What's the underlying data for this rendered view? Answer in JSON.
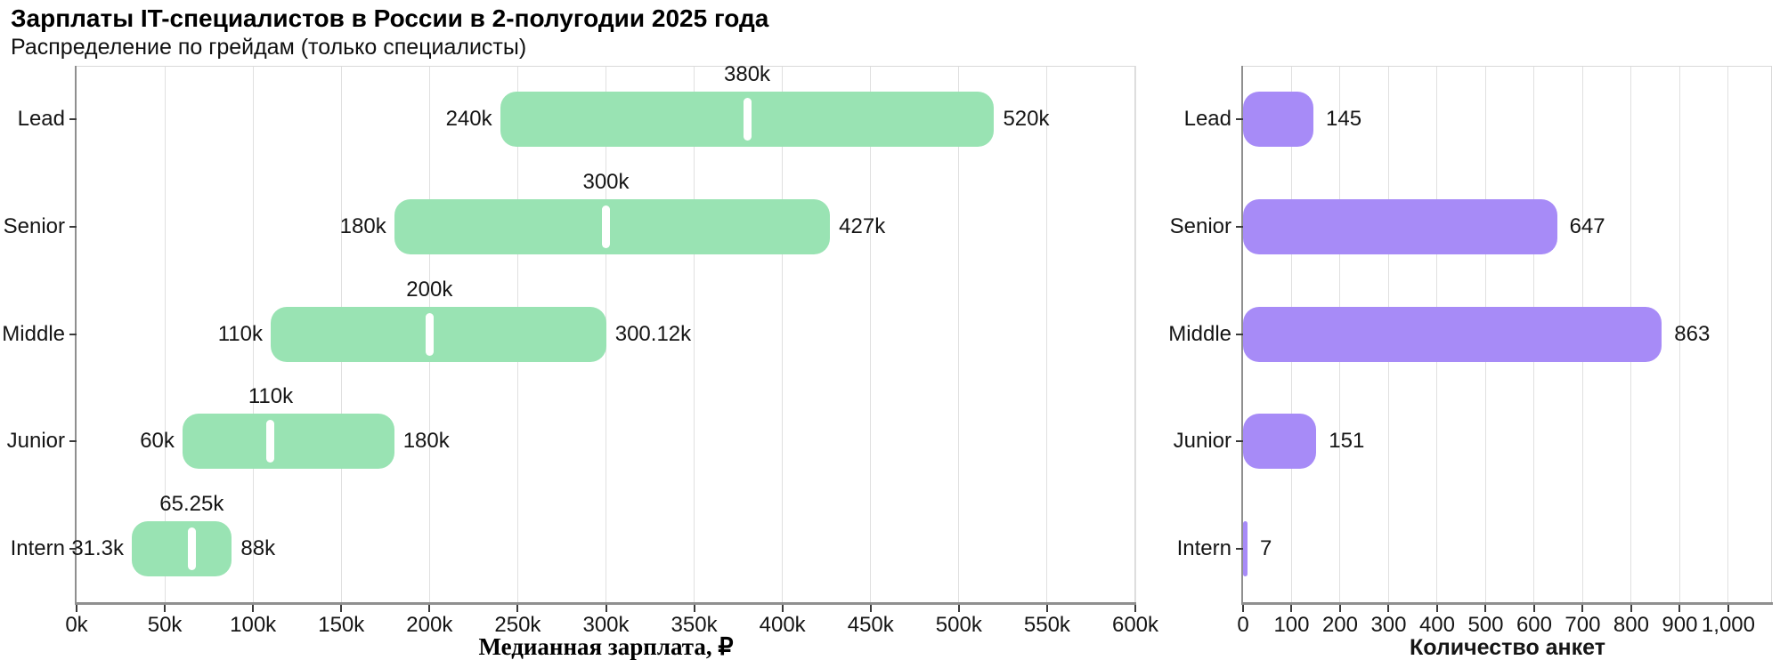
{
  "header": {
    "title": "Зарплаты IT-специалистов в России в 2-полугодии 2025 года",
    "subtitle": "Распределение по грейдам (только специалисты)"
  },
  "colors": {
    "salary_bar": "#99E3B3",
    "count_bar": "#A78BF7",
    "median_marker": "#FFFFFF",
    "gridline": "#E0E0E0",
    "axis_line": "#8F8F8F",
    "frame": "#D9D9D9",
    "text": "#151515"
  },
  "chart_data": [
    {
      "type": "range-bar",
      "title": "Зарплаты IT-специалистов в России в 2-полугодии 2025 года",
      "subtitle": "Распределение по грейдам (только специалисты)",
      "categories": [
        "Lead",
        "Senior",
        "Middle",
        "Junior",
        "Intern"
      ],
      "series": [
        {
          "name": "min",
          "values": [
            240,
            180,
            110,
            60,
            31.3
          ]
        },
        {
          "name": "median",
          "values": [
            380,
            300,
            200,
            110,
            65.25
          ]
        },
        {
          "name": "max",
          "values": [
            520,
            427,
            300.12,
            180,
            88
          ]
        }
      ],
      "value_labels": {
        "min": [
          "240k",
          "180k",
          "110k",
          "60k",
          "31.3k"
        ],
        "median": [
          "380k",
          "300k",
          "200k",
          "110k",
          "65.25k"
        ],
        "max": [
          "520k",
          "427k",
          "300.12k",
          "180k",
          "88k"
        ]
      },
      "xlabel": "Медианная зарплата, ₽",
      "unit": "thousand RUB",
      "xlim": [
        0,
        600
      ],
      "xticks": {
        "values": [
          0,
          50,
          100,
          150,
          200,
          250,
          300,
          350,
          400,
          450,
          500,
          550,
          600
        ],
        "labels": [
          "0k",
          "50k",
          "100k",
          "150k",
          "200k",
          "250k",
          "300k",
          "350k",
          "400k",
          "450k",
          "500k",
          "550k",
          "600k"
        ]
      },
      "grid": true,
      "legend": false,
      "bar_color": "#99E3B3",
      "marker_color": "#FFFFFF"
    },
    {
      "type": "bar",
      "categories": [
        "Lead",
        "Senior",
        "Middle",
        "Junior",
        "Intern"
      ],
      "values": [
        145,
        647,
        863,
        151,
        7
      ],
      "value_labels": [
        "145",
        "647",
        "863",
        "151",
        "7"
      ],
      "xlabel": "Количество анкет",
      "xlim": [
        0,
        1090
      ],
      "xticks": {
        "values": [
          0,
          100,
          200,
          300,
          400,
          500,
          600,
          700,
          800,
          900,
          1000
        ],
        "labels": [
          "0",
          "100",
          "200",
          "300",
          "400",
          "500",
          "600",
          "700",
          "800",
          "900",
          "1,000"
        ]
      },
      "grid": true,
      "legend": false,
      "bar_color": "#A78BF7"
    }
  ]
}
